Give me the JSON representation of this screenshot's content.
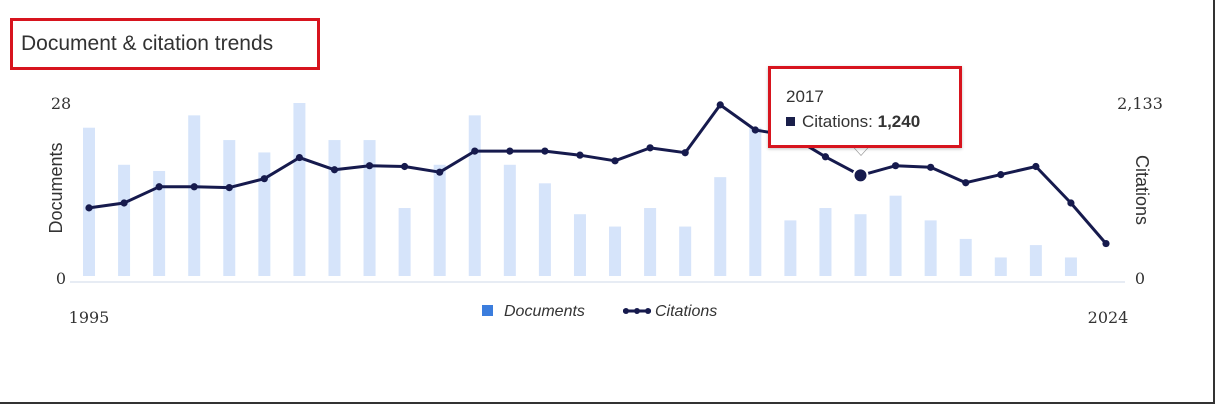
{
  "title": "Document & citation trends",
  "tooltip": {
    "year": "2017",
    "series_label": "Citations:",
    "value": "1,240"
  },
  "chart_data": {
    "type": "bar",
    "x": [
      1995,
      1996,
      1997,
      1998,
      1999,
      2000,
      2001,
      2002,
      2003,
      2004,
      2005,
      2006,
      2007,
      2008,
      2009,
      2010,
      2011,
      2012,
      2013,
      2014,
      2015,
      2016,
      2017,
      2018,
      2019,
      2020,
      2021,
      2022,
      2023,
      2024
    ],
    "x_tick_labels": [
      "1995",
      "2024"
    ],
    "series": [
      {
        "name": "Documents",
        "type": "bar",
        "axis": "left",
        "color": "#d6e4fa",
        "legend_color": "#3b7ddd",
        "values": [
          24,
          18,
          17,
          26,
          22,
          20,
          28,
          22,
          22,
          11,
          18,
          26,
          18,
          15,
          10,
          8,
          11,
          8,
          16,
          24,
          9,
          11,
          10,
          13,
          9,
          6,
          3,
          5,
          3,
          0
        ]
      },
      {
        "name": "Citations",
        "type": "line",
        "axis": "right",
        "color": "#161a4d",
        "values": [
          840,
          900,
          1100,
          1100,
          1090,
          1200,
          1460,
          1310,
          1360,
          1350,
          1280,
          1540,
          1540,
          1540,
          1490,
          1420,
          1580,
          1520,
          2110,
          1800,
          1730,
          1470,
          1240,
          1360,
          1340,
          1150,
          1250,
          1350,
          900,
          400
        ]
      }
    ],
    "highlight_index": 22,
    "y_left": {
      "label": "Documents",
      "ticks": [
        "0",
        "28"
      ],
      "range": [
        0,
        28
      ]
    },
    "y_right": {
      "label": "Citations",
      "ticks": [
        "0",
        "2,133"
      ],
      "range": [
        0,
        2133
      ]
    },
    "legend": {
      "position": "bottom",
      "items": [
        "Documents",
        "Citations"
      ]
    },
    "grid": false
  }
}
